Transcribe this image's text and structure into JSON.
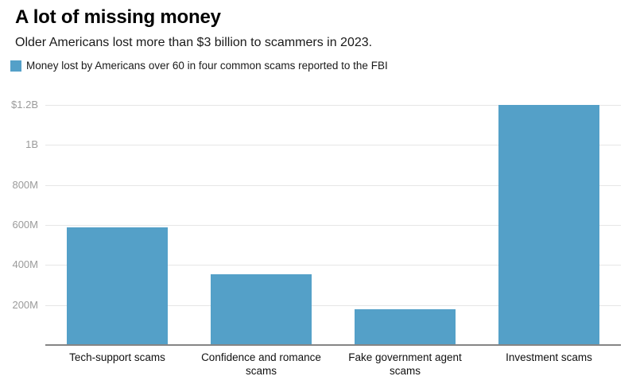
{
  "header": {
    "title": "A lot of missing money",
    "subtitle": "Older Americans lost more than $3 billion to scammers in 2023."
  },
  "legend": {
    "label": "Money lost by Americans over 60 in four common scams reported to the FBI",
    "swatch_color": "#54a0c8"
  },
  "chart_data": {
    "type": "bar",
    "title": "A lot of missing money",
    "subtitle": "Older Americans lost more than $3 billion to scammers in 2023.",
    "series_name": "Money lost by Americans over 60 in four common scams reported to the FBI",
    "categories": [
      "Tech-support scams",
      "Confidence and romance scams",
      "Fake government agent scams",
      "Investment scams"
    ],
    "values": [
      590,
      355,
      180,
      1200
    ],
    "value_unit": "millions of USD",
    "xlabel": "",
    "ylabel": "",
    "ylim": [
      0,
      1260
    ],
    "yticks": [
      {
        "value": 200,
        "label": "200M"
      },
      {
        "value": 400,
        "label": "400M"
      },
      {
        "value": 600,
        "label": "600M"
      },
      {
        "value": 800,
        "label": "800M"
      },
      {
        "value": 1000,
        "label": "1B"
      },
      {
        "value": 1200,
        "label": "$1.2B"
      }
    ],
    "grid": true,
    "legend_position": "top-left",
    "bar_color": "#54a0c8",
    "gridline_color": "#e6e6e6",
    "axis_line_color": "#858585",
    "ytick_text_color": "#9b9b9b",
    "xtick_text_color": "#111111"
  }
}
